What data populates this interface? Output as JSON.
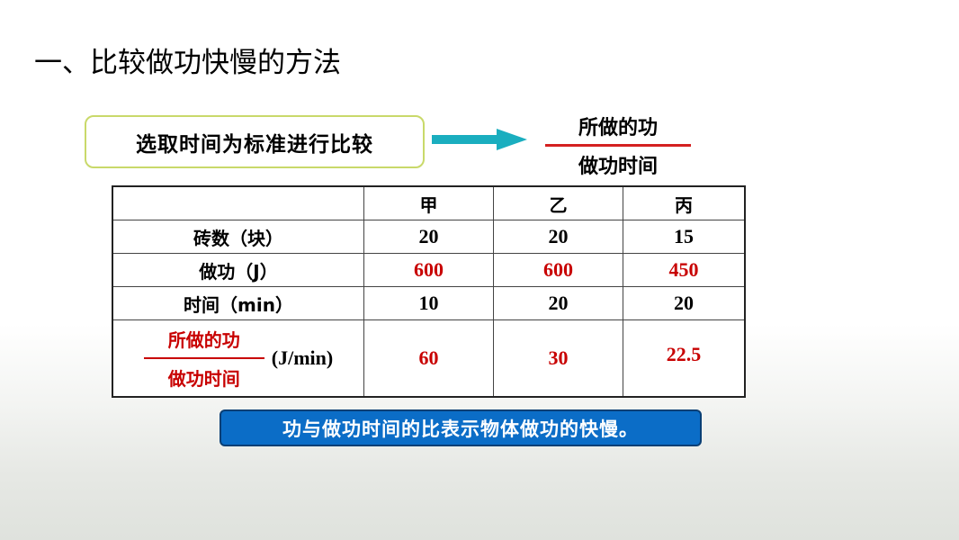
{
  "title": "一、比较做功快慢的方法",
  "method_box": "选取时间为标准进行比较",
  "fraction": {
    "numerator": "所做的功",
    "denominator": "做功时间"
  },
  "colors": {
    "arrow": "#1aaebf",
    "box_border": "#c9d96a",
    "fraction_line": "#d42020",
    "red_text": "#c80000",
    "conclusion_bg": "#0b6dc7"
  },
  "table": {
    "headers": [
      "",
      "甲",
      "乙",
      "丙"
    ],
    "rows": [
      {
        "label": "砖数（块）",
        "values": [
          "20",
          "20",
          "15"
        ]
      },
      {
        "label": "做功（J）",
        "values": [
          "600",
          "600",
          "450"
        ]
      },
      {
        "label": "时间（min）",
        "values": [
          "10",
          "20",
          "20"
        ]
      }
    ],
    "ratio_row": {
      "numerator": "所做的功",
      "denominator": "做功时间",
      "unit": "(J/min)",
      "values": [
        "60",
        "30",
        "22.5"
      ]
    }
  },
  "conclusion": "功与做功时间的比表示物体做功的快慢。"
}
